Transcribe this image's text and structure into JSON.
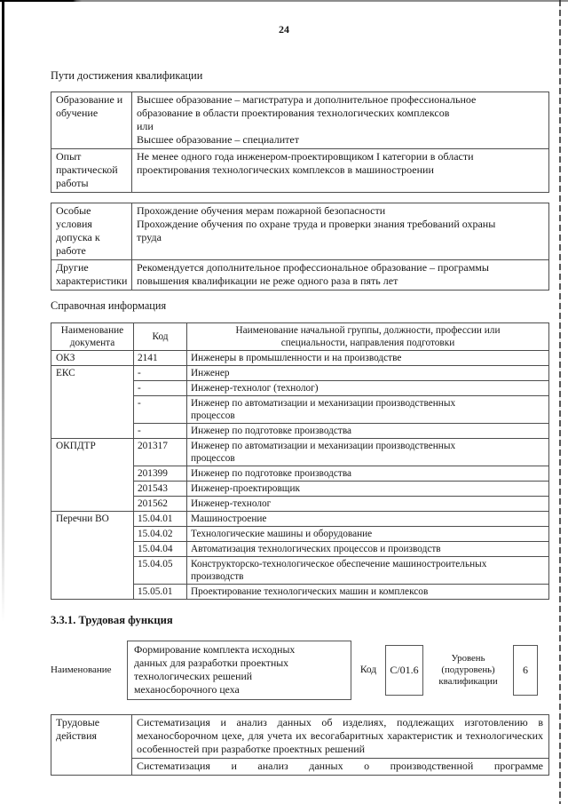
{
  "page": {
    "number": "24",
    "headings": {
      "qualification_paths": "Пути достижения квалификации",
      "reference_info": "Справочная информация",
      "labor_function": "3.3.1. Трудовая функция"
    }
  },
  "qualification_table": {
    "rows": [
      {
        "label": "Образование и\nобучение",
        "text": "Высшее образование – магистратура и дополнительное профессиональное\nобразование в области проектирования технологических комплексов\nили\nВысшее образование – специалитет"
      },
      {
        "label": "Опыт\nпрактической\nработы",
        "text": "Не менее одного года инженером-проектировщиком I категории в области\nпроектирования технологических комплексов в машиностроении"
      }
    ]
  },
  "conditions_table": {
    "rows": [
      {
        "label": "Особые\nусловия\nдопуска к\nработе",
        "text": "Прохождение обучения мерам пожарной безопасности\nПрохождение обучения по охране труда и проверки знания требований охраны\nтруда"
      },
      {
        "label": "Другие\nхарактеристики",
        "text": "Рекомендуется дополнительное профессиональное образование – программы\nповышения квалификации не реже одного раза в пять лет"
      }
    ]
  },
  "reference_table": {
    "headers": {
      "document": "Наименование\nдокумента",
      "code": "Код",
      "name": "Наименование начальной группы, должности, профессии или\nспециальности, направления подготовки"
    },
    "groups": [
      {
        "doc": "ОКЗ",
        "entries": [
          {
            "code": "2141",
            "name": "Инженеры в промышленности и на производстве"
          }
        ]
      },
      {
        "doc": "ЕКС",
        "entries": [
          {
            "code": "-",
            "name": "Инженер"
          },
          {
            "code": "-",
            "name": "Инженер-технолог (технолог)"
          },
          {
            "code": "-",
            "name": "Инженер по автоматизации и механизации производственных\nпроцессов"
          },
          {
            "code": "-",
            "name": "Инженер по подготовке производства"
          }
        ]
      },
      {
        "doc": "ОКПДТР",
        "entries": [
          {
            "code": "201317",
            "name": "Инженер по автоматизации и механизации производственных\nпроцессов"
          },
          {
            "code": "201399",
            "name": "Инженер по подготовке производства"
          },
          {
            "code": "201543",
            "name": "Инженер-проектировщик"
          },
          {
            "code": "201562",
            "name": "Инженер-технолог"
          }
        ]
      },
      {
        "doc": "Перечни ВО",
        "entries": [
          {
            "code": "15.04.01",
            "name": "Машиностроение"
          },
          {
            "code": "15.04.02",
            "name": "Технологические машины и оборудование"
          },
          {
            "code": "15.04.04",
            "name": "Автоматизация технологических процессов и производств"
          },
          {
            "code": "15.04.05",
            "name": "Конструкторско-технологическое обеспечение машиностроительных\nпроизводств"
          },
          {
            "code": "15.05.01",
            "name": "Проектирование технологических машин и комплексов"
          }
        ]
      }
    ]
  },
  "labor_function": {
    "name_label": "Наименование",
    "name_value": "Формирование комплекта исходных\nданных для разработки проектных\nтехнологических решений\nмеханосборочного цеха",
    "code_label": "Код",
    "code_value": "С/01.6",
    "level_label": "Уровень\n(подуровень)\nквалификации",
    "level_value": "6"
  },
  "actions_table": {
    "label": "Трудовые\nдействия",
    "rows": [
      "Систематизация и анализ данных об изделиях, подлежащих изготовлению в механосборочном цехе, для учета их весогабаритных характеристик и технологических особенностей при разработке проектных решений",
      "Систематизация и анализ данных о производственной программе"
    ]
  }
}
